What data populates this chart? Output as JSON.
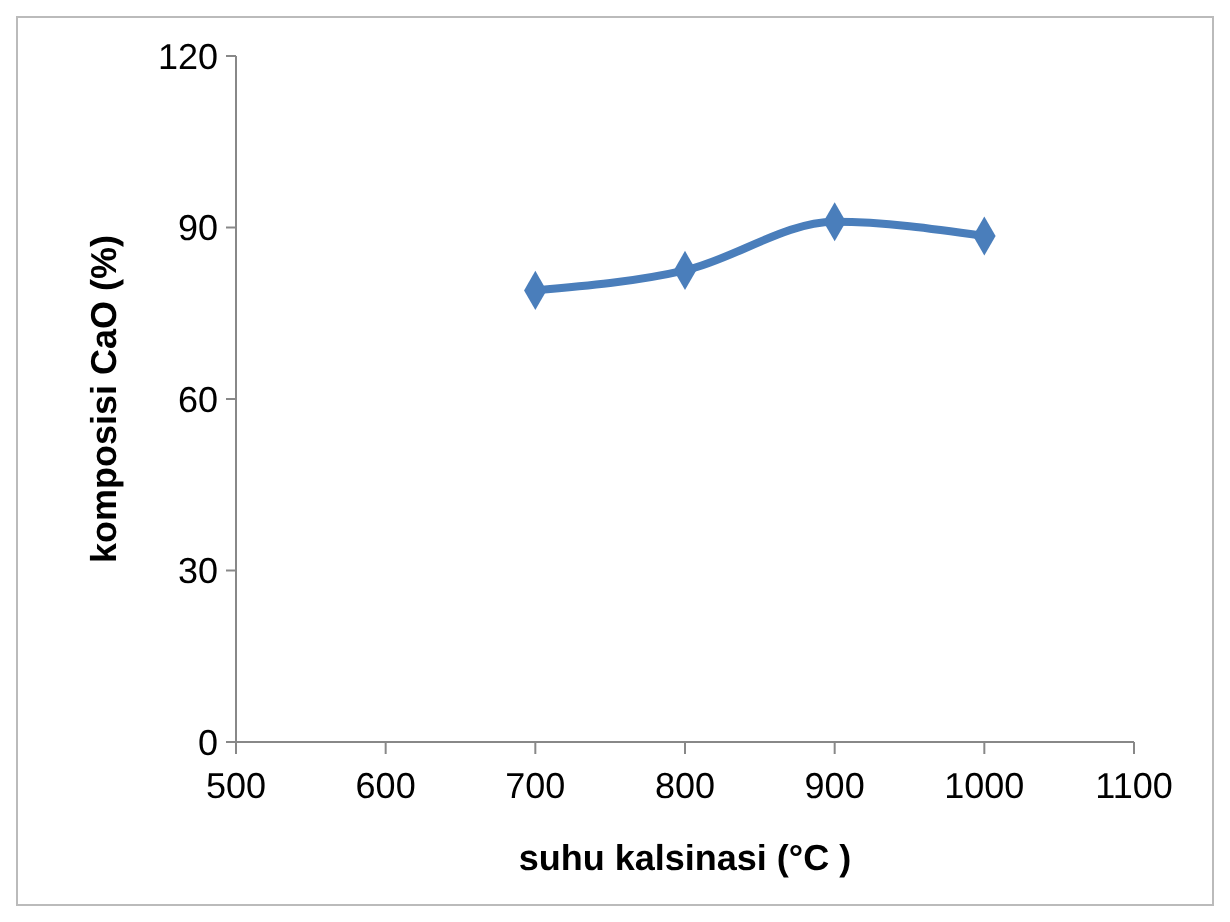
{
  "chart_data": {
    "type": "line",
    "xlabel": "suhu kalsinasi (°C )",
    "ylabel": "komposisi CaO (%)",
    "x": [
      700,
      800,
      900,
      1000
    ],
    "series": [
      {
        "color": "#4a7ebb",
        "values": [
          79,
          82.5,
          91,
          88.5
        ]
      }
    ],
    "xlim": [
      500,
      1100
    ],
    "xticks": [
      500,
      600,
      700,
      800,
      900,
      1000,
      1100
    ],
    "ylim": [
      0,
      120
    ],
    "yticks": [
      0,
      30,
      60,
      90,
      120
    ],
    "grid": false,
    "marker": "diamond",
    "line_style": "solid"
  }
}
